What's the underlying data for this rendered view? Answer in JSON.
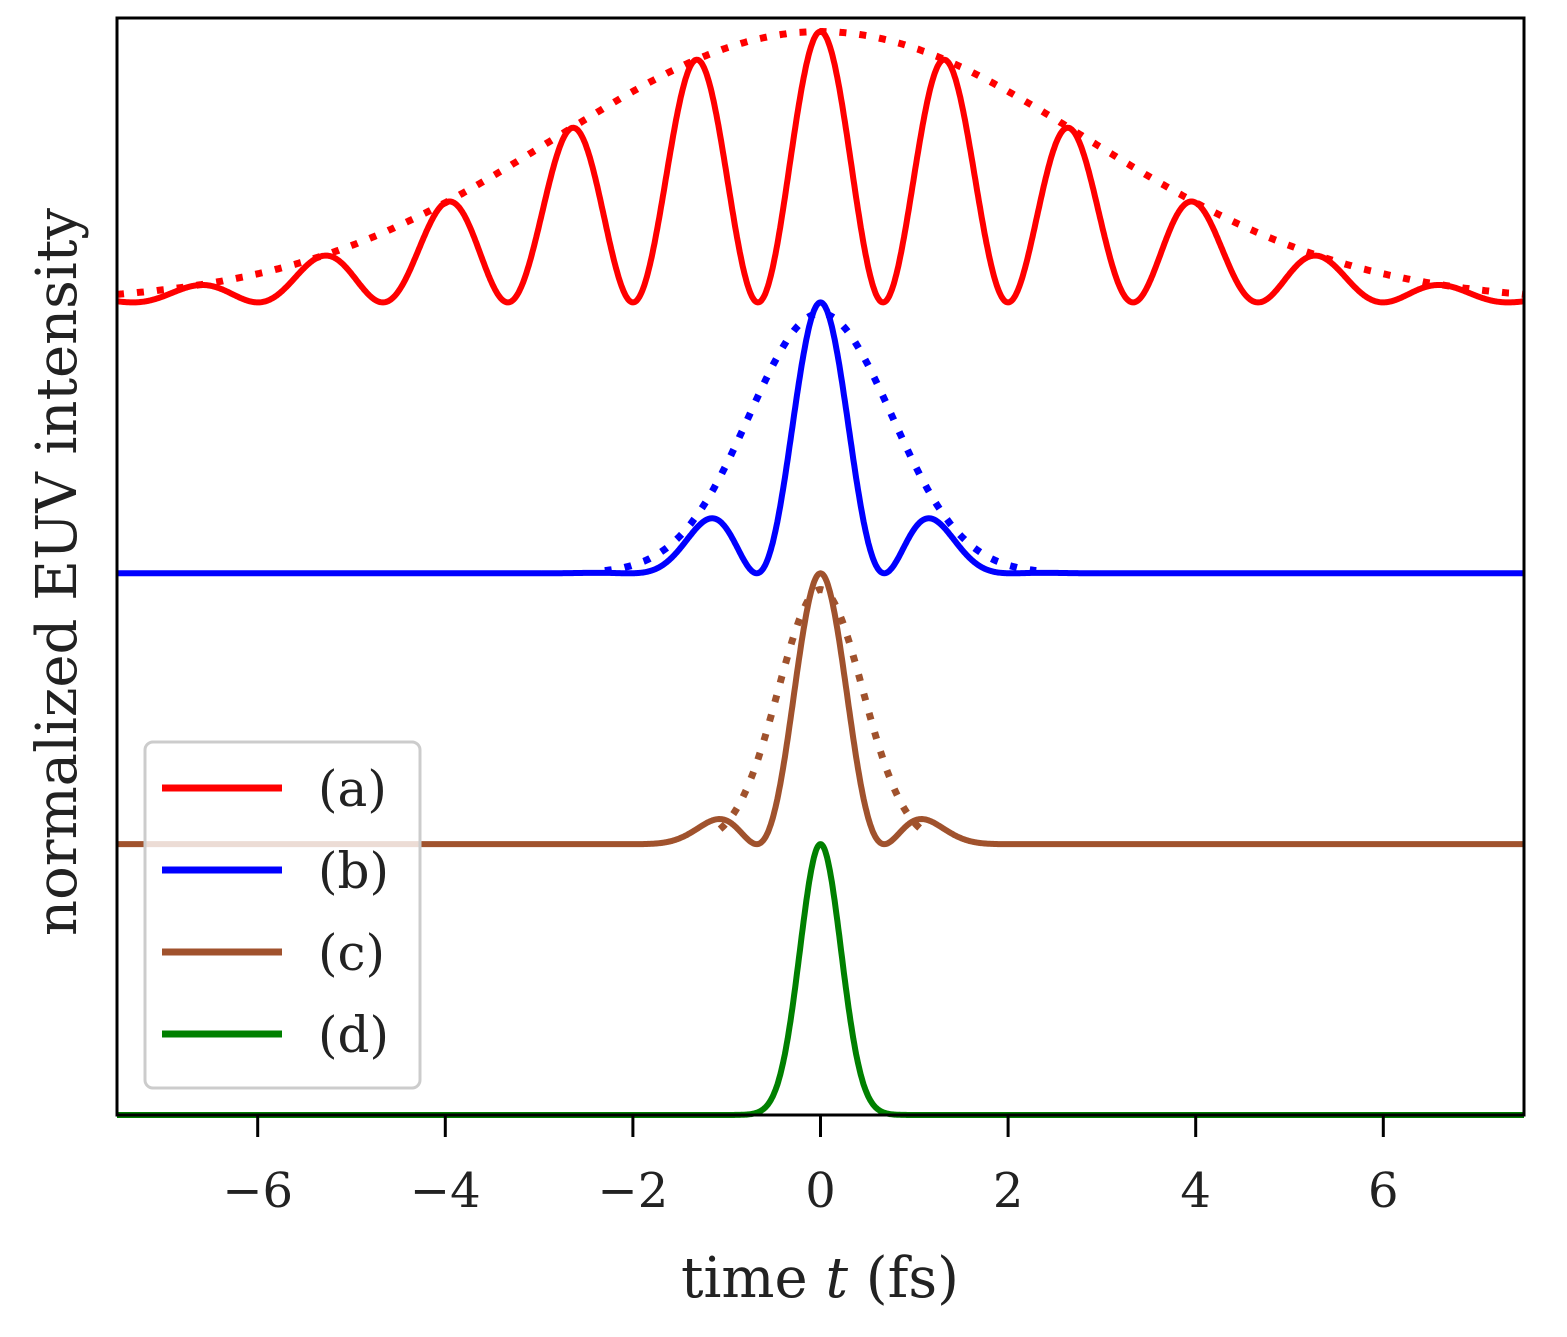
{
  "chart_data": {
    "type": "line",
    "title": "",
    "xlabel_parts": [
      "time ",
      "t",
      " (fs)"
    ],
    "ylabel": "normalized EUV intensity",
    "xlim": [
      -7.5,
      7.5
    ],
    "ylim": [
      0,
      4.05
    ],
    "xticks": [
      -6,
      -4,
      -2,
      0,
      2,
      4,
      6
    ],
    "xtick_labels": [
      "−6",
      "−4",
      "−2",
      "0",
      "2",
      "4",
      "6"
    ],
    "yticks": [],
    "grid": false,
    "legend_position": "lower-left",
    "series": [
      {
        "name": "(a)",
        "color": "#ff0000",
        "offset": 3,
        "peak": 1.0,
        "envelope_sigma_fs": 2.83,
        "carrier_period_fs": 1.333,
        "envelope_peak": 1.0,
        "envelope_dotted_sigma_fs": 2.83,
        "envelope_range_fs": [
          -7.5,
          7.5
        ]
      },
      {
        "name": "(b)",
        "color": "#0000ff",
        "offset": 2,
        "peak": 1.0,
        "envelope_sigma_fs": 0.7,
        "carrier_period_fs": 1.36,
        "envelope_peak": 0.96,
        "envelope_dotted_sigma_fs": 0.76,
        "envelope_range_fs": [
          -2.3,
          2.3
        ]
      },
      {
        "name": "(c)",
        "color": "#a0522d",
        "offset": 1,
        "peak": 1.0,
        "envelope_sigma_fs": 0.55,
        "carrier_period_fs": 1.36,
        "envelope_peak": 0.94,
        "envelope_dotted_sigma_fs": 0.45,
        "envelope_range_fs": [
          -1.07,
          1.07
        ]
      },
      {
        "name": "(d)",
        "color": "#008000",
        "offset": 0,
        "peak": 1.0,
        "envelope_sigma_fs": 0.22,
        "carrier_period_fs": null,
        "envelope_peak": null,
        "envelope_dotted_sigma_fs": null,
        "envelope_range_fs": null
      }
    ]
  }
}
